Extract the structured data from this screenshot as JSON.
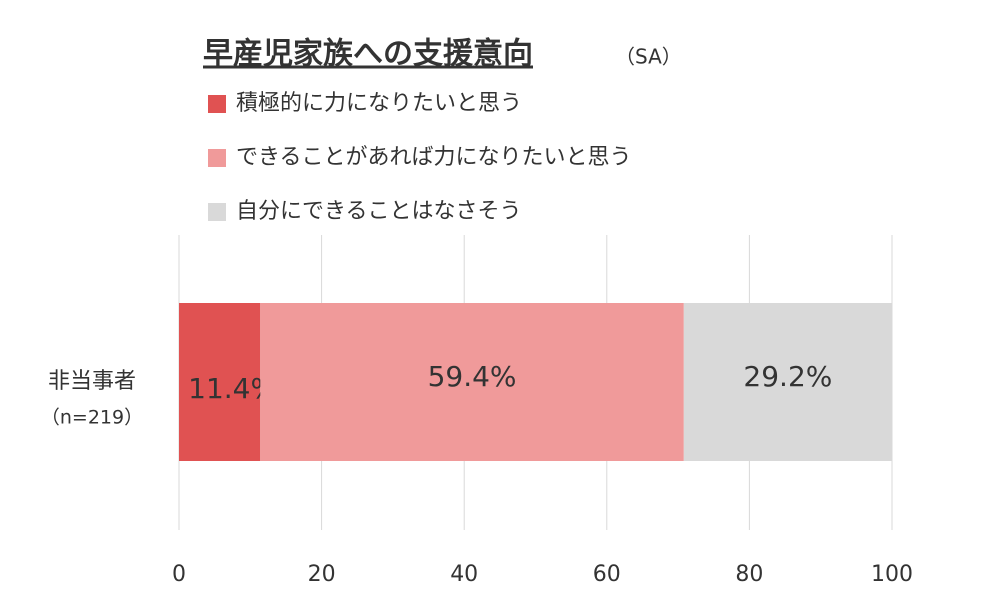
{
  "chart_data": {
    "type": "stacked-barh",
    "title": "早産児家族への支援意向",
    "title_note": "（SA）",
    "categories": [
      "非当事者"
    ],
    "category_notes": [
      "（n=219）"
    ],
    "series": [
      {
        "name": "積極的に力になりたいと思う",
        "color": "#e05252",
        "values": [
          11.4
        ],
        "value_labels": [
          "11.4%"
        ]
      },
      {
        "name": "できることがあれば力になりたいと思う",
        "color": "#f09a9a",
        "values": [
          59.4
        ],
        "value_labels": [
          "59.4%"
        ]
      },
      {
        "name": "自分にできることはなさそう",
        "color": "#d9d9d9",
        "values": [
          29.2
        ],
        "value_labels": [
          "29.2%"
        ]
      }
    ],
    "xlim": [
      0,
      100
    ],
    "xticks": [
      0,
      20,
      40,
      60,
      80,
      100
    ],
    "grid": true
  }
}
